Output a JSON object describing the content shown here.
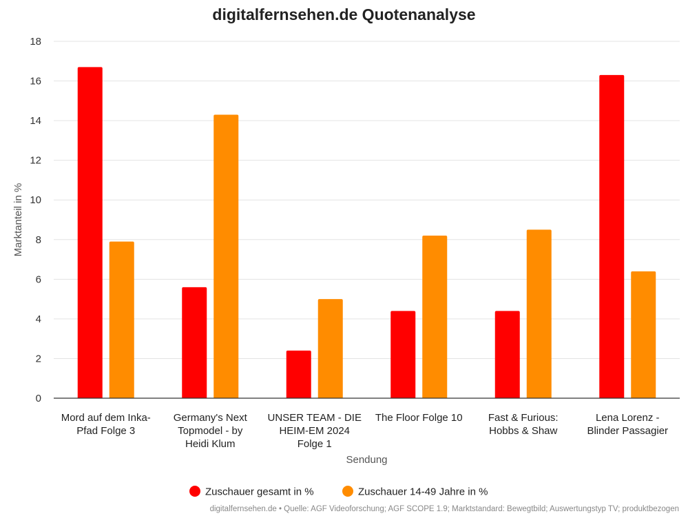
{
  "chart_data": {
    "type": "bar",
    "title": "digitalfernsehen.de Quotenanalyse",
    "xlabel": "Sendung",
    "ylabel": "Marktanteil in %",
    "ylim": [
      0,
      18
    ],
    "yticks": [
      0,
      2,
      4,
      6,
      8,
      10,
      12,
      14,
      16,
      18
    ],
    "grid": true,
    "legend_position": "bottom",
    "categories": [
      [
        "Mord auf dem Inka-",
        "Pfad Folge 3"
      ],
      [
        "Germany's Next",
        "Topmodel - by",
        "Heidi Klum"
      ],
      [
        "UNSER TEAM - DIE",
        "HEIM-EM 2024",
        "Folge 1"
      ],
      [
        "The Floor Folge 10"
      ],
      [
        "Fast & Furious:",
        "Hobbs & Shaw"
      ],
      [
        "Lena Lorenz -",
        "Blinder Passagier"
      ]
    ],
    "series": [
      {
        "name": "Zuschauer gesamt in %",
        "color": "#ff0000",
        "values": [
          16.7,
          5.6,
          2.4,
          4.4,
          4.4,
          16.3
        ]
      },
      {
        "name": "Zuschauer 14-49 Jahre in %",
        "color": "#ff8c00",
        "values": [
          7.9,
          14.3,
          5.0,
          8.2,
          8.5,
          6.4
        ]
      }
    ],
    "source_note": "digitalfernsehen.de • Quelle: AGF Videoforschung; AGF SCOPE 1.9; Marktstandard: Bewegtbild; Auswertungstyp TV; produktbezogen"
  }
}
